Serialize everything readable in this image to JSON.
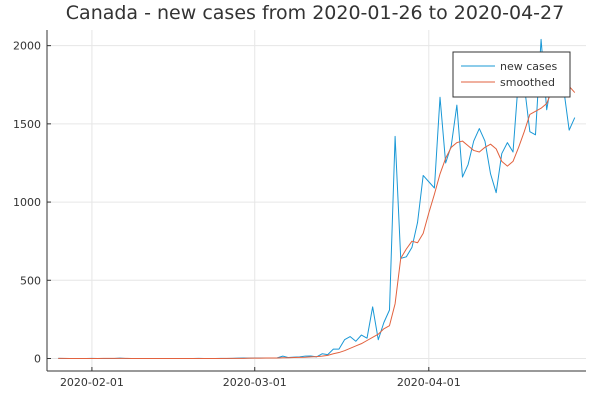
{
  "chart_data": {
    "type": "line",
    "title": "Canada - new cases from 2020-01-26 to 2020-04-27",
    "xlabel": "",
    "ylabel": "",
    "x_start_date": "2020-01-26",
    "x_end_date": "2020-04-27",
    "xlim": [
      "2020-01-24",
      "2020-04-29"
    ],
    "ylim": [
      -80,
      2100
    ],
    "x_ticks": [
      {
        "date": "2020-02-01",
        "label": "2020-02-01"
      },
      {
        "date": "2020-03-01",
        "label": "2020-03-01"
      },
      {
        "date": "2020-04-01",
        "label": "2020-04-01"
      }
    ],
    "y_ticks": [
      {
        "value": 0,
        "label": "0"
      },
      {
        "value": 500,
        "label": "500"
      },
      {
        "value": 1000,
        "label": "1000"
      },
      {
        "value": 1500,
        "label": "1500"
      },
      {
        "value": 2000,
        "label": "2000"
      }
    ],
    "grid": true,
    "legend_position": "top-right",
    "series": [
      {
        "name": "new cases",
        "color": "#1a98d6",
        "points": [
          [
            "2020-01-26",
            1
          ],
          [
            "2020-01-27",
            0
          ],
          [
            "2020-01-28",
            0
          ],
          [
            "2020-01-29",
            0
          ],
          [
            "2020-01-30",
            0
          ],
          [
            "2020-01-31",
            0
          ],
          [
            "2020-02-01",
            1
          ],
          [
            "2020-02-02",
            0
          ],
          [
            "2020-02-03",
            0
          ],
          [
            "2020-02-04",
            0
          ],
          [
            "2020-02-05",
            0
          ],
          [
            "2020-02-06",
            2
          ],
          [
            "2020-02-07",
            0
          ],
          [
            "2020-02-08",
            0
          ],
          [
            "2020-02-09",
            0
          ],
          [
            "2020-02-10",
            0
          ],
          [
            "2020-02-11",
            0
          ],
          [
            "2020-02-12",
            0
          ],
          [
            "2020-02-13",
            0
          ],
          [
            "2020-02-14",
            0
          ],
          [
            "2020-02-15",
            0
          ],
          [
            "2020-02-16",
            0
          ],
          [
            "2020-02-17",
            0
          ],
          [
            "2020-02-18",
            0
          ],
          [
            "2020-02-19",
            0
          ],
          [
            "2020-02-20",
            1
          ],
          [
            "2020-02-21",
            0
          ],
          [
            "2020-02-22",
            0
          ],
          [
            "2020-02-23",
            0
          ],
          [
            "2020-02-24",
            1
          ],
          [
            "2020-02-25",
            0
          ],
          [
            "2020-02-26",
            1
          ],
          [
            "2020-02-27",
            2
          ],
          [
            "2020-02-28",
            3
          ],
          [
            "2020-02-29",
            2
          ],
          [
            "2020-03-01",
            3
          ],
          [
            "2020-03-02",
            3
          ],
          [
            "2020-03-03",
            3
          ],
          [
            "2020-03-04",
            3
          ],
          [
            "2020-03-05",
            4
          ],
          [
            "2020-03-06",
            15
          ],
          [
            "2020-03-07",
            6
          ],
          [
            "2020-03-08",
            9
          ],
          [
            "2020-03-09",
            10
          ],
          [
            "2020-03-10",
            15
          ],
          [
            "2020-03-11",
            16
          ],
          [
            "2020-03-12",
            10
          ],
          [
            "2020-03-13",
            30
          ],
          [
            "2020-03-14",
            25
          ],
          [
            "2020-03-15",
            60
          ],
          [
            "2020-03-16",
            60
          ],
          [
            "2020-03-17",
            120
          ],
          [
            "2020-03-18",
            140
          ],
          [
            "2020-03-19",
            110
          ],
          [
            "2020-03-20",
            150
          ],
          [
            "2020-03-21",
            130
          ],
          [
            "2020-03-22",
            330
          ],
          [
            "2020-03-23",
            120
          ],
          [
            "2020-03-24",
            230
          ],
          [
            "2020-03-25",
            310
          ],
          [
            "2020-03-26",
            1420
          ],
          [
            "2020-03-27",
            640
          ],
          [
            "2020-03-28",
            650
          ],
          [
            "2020-03-29",
            710
          ],
          [
            "2020-03-30",
            870
          ],
          [
            "2020-03-31",
            1170
          ],
          [
            "2020-04-01",
            1130
          ],
          [
            "2020-04-02",
            1090
          ],
          [
            "2020-04-03",
            1670
          ],
          [
            "2020-04-04",
            1250
          ],
          [
            "2020-04-05",
            1360
          ],
          [
            "2020-04-06",
            1620
          ],
          [
            "2020-04-07",
            1160
          ],
          [
            "2020-04-08",
            1240
          ],
          [
            "2020-04-09",
            1390
          ],
          [
            "2020-04-10",
            1470
          ],
          [
            "2020-04-11",
            1390
          ],
          [
            "2020-04-12",
            1180
          ],
          [
            "2020-04-13",
            1060
          ],
          [
            "2020-04-14",
            1310
          ],
          [
            "2020-04-15",
            1380
          ],
          [
            "2020-04-16",
            1320
          ],
          [
            "2020-04-17",
            1800
          ],
          [
            "2020-04-18",
            1750
          ],
          [
            "2020-04-19",
            1450
          ],
          [
            "2020-04-20",
            1430
          ],
          [
            "2020-04-21",
            2040
          ],
          [
            "2020-04-22",
            1590
          ],
          [
            "2020-04-23",
            1800
          ],
          [
            "2020-04-24",
            1760
          ],
          [
            "2020-04-25",
            1730
          ],
          [
            "2020-04-26",
            1460
          ],
          [
            "2020-04-27",
            1540
          ]
        ]
      },
      {
        "name": "smoothed",
        "color": "#e2623f",
        "points": [
          [
            "2020-01-26",
            1
          ],
          [
            "2020-01-27",
            1
          ],
          [
            "2020-01-28",
            0
          ],
          [
            "2020-01-29",
            0
          ],
          [
            "2020-01-30",
            0
          ],
          [
            "2020-01-31",
            0
          ],
          [
            "2020-02-01",
            0
          ],
          [
            "2020-02-02",
            0
          ],
          [
            "2020-02-03",
            1
          ],
          [
            "2020-02-04",
            1
          ],
          [
            "2020-02-05",
            1
          ],
          [
            "2020-02-06",
            1
          ],
          [
            "2020-02-07",
            1
          ],
          [
            "2020-02-08",
            0
          ],
          [
            "2020-02-09",
            0
          ],
          [
            "2020-02-10",
            0
          ],
          [
            "2020-02-11",
            0
          ],
          [
            "2020-02-12",
            0
          ],
          [
            "2020-02-13",
            0
          ],
          [
            "2020-02-14",
            0
          ],
          [
            "2020-02-15",
            0
          ],
          [
            "2020-02-16",
            0
          ],
          [
            "2020-02-17",
            0
          ],
          [
            "2020-02-18",
            0
          ],
          [
            "2020-02-19",
            0
          ],
          [
            "2020-02-20",
            0
          ],
          [
            "2020-02-21",
            0
          ],
          [
            "2020-02-22",
            0
          ],
          [
            "2020-02-23",
            0
          ],
          [
            "2020-02-24",
            0
          ],
          [
            "2020-02-25",
            1
          ],
          [
            "2020-02-26",
            1
          ],
          [
            "2020-02-27",
            1
          ],
          [
            "2020-02-28",
            1
          ],
          [
            "2020-02-29",
            2
          ],
          [
            "2020-03-01",
            2
          ],
          [
            "2020-03-02",
            2
          ],
          [
            "2020-03-03",
            3
          ],
          [
            "2020-03-04",
            3
          ],
          [
            "2020-03-05",
            3
          ],
          [
            "2020-03-06",
            5
          ],
          [
            "2020-03-07",
            5
          ],
          [
            "2020-03-08",
            6
          ],
          [
            "2020-03-09",
            7
          ],
          [
            "2020-03-10",
            8
          ],
          [
            "2020-03-11",
            10
          ],
          [
            "2020-03-12",
            12
          ],
          [
            "2020-03-13",
            15
          ],
          [
            "2020-03-14",
            20
          ],
          [
            "2020-03-15",
            30
          ],
          [
            "2020-03-16",
            38
          ],
          [
            "2020-03-17",
            50
          ],
          [
            "2020-03-18",
            65
          ],
          [
            "2020-03-19",
            80
          ],
          [
            "2020-03-20",
            95
          ],
          [
            "2020-03-21",
            115
          ],
          [
            "2020-03-22",
            135
          ],
          [
            "2020-03-23",
            155
          ],
          [
            "2020-03-24",
            190
          ],
          [
            "2020-03-25",
            210
          ],
          [
            "2020-03-26",
            350
          ],
          [
            "2020-03-27",
            640
          ],
          [
            "2020-03-28",
            700
          ],
          [
            "2020-03-29",
            750
          ],
          [
            "2020-03-30",
            740
          ],
          [
            "2020-03-31",
            800
          ],
          [
            "2020-04-01",
            930
          ],
          [
            "2020-04-02",
            1050
          ],
          [
            "2020-04-03",
            1180
          ],
          [
            "2020-04-04",
            1280
          ],
          [
            "2020-04-05",
            1350
          ],
          [
            "2020-04-06",
            1380
          ],
          [
            "2020-04-07",
            1390
          ],
          [
            "2020-04-08",
            1360
          ],
          [
            "2020-04-09",
            1330
          ],
          [
            "2020-04-10",
            1320
          ],
          [
            "2020-04-11",
            1350
          ],
          [
            "2020-04-12",
            1370
          ],
          [
            "2020-04-13",
            1340
          ],
          [
            "2020-04-14",
            1260
          ],
          [
            "2020-04-15",
            1230
          ],
          [
            "2020-04-16",
            1260
          ],
          [
            "2020-04-17",
            1350
          ],
          [
            "2020-04-18",
            1450
          ],
          [
            "2020-04-19",
            1560
          ],
          [
            "2020-04-20",
            1580
          ],
          [
            "2020-04-21",
            1600
          ],
          [
            "2020-04-22",
            1630
          ],
          [
            "2020-04-23",
            1720
          ],
          [
            "2020-04-24",
            1780
          ],
          [
            "2020-04-25",
            1760
          ],
          [
            "2020-04-26",
            1740
          ],
          [
            "2020-04-27",
            1700
          ]
        ]
      }
    ]
  }
}
